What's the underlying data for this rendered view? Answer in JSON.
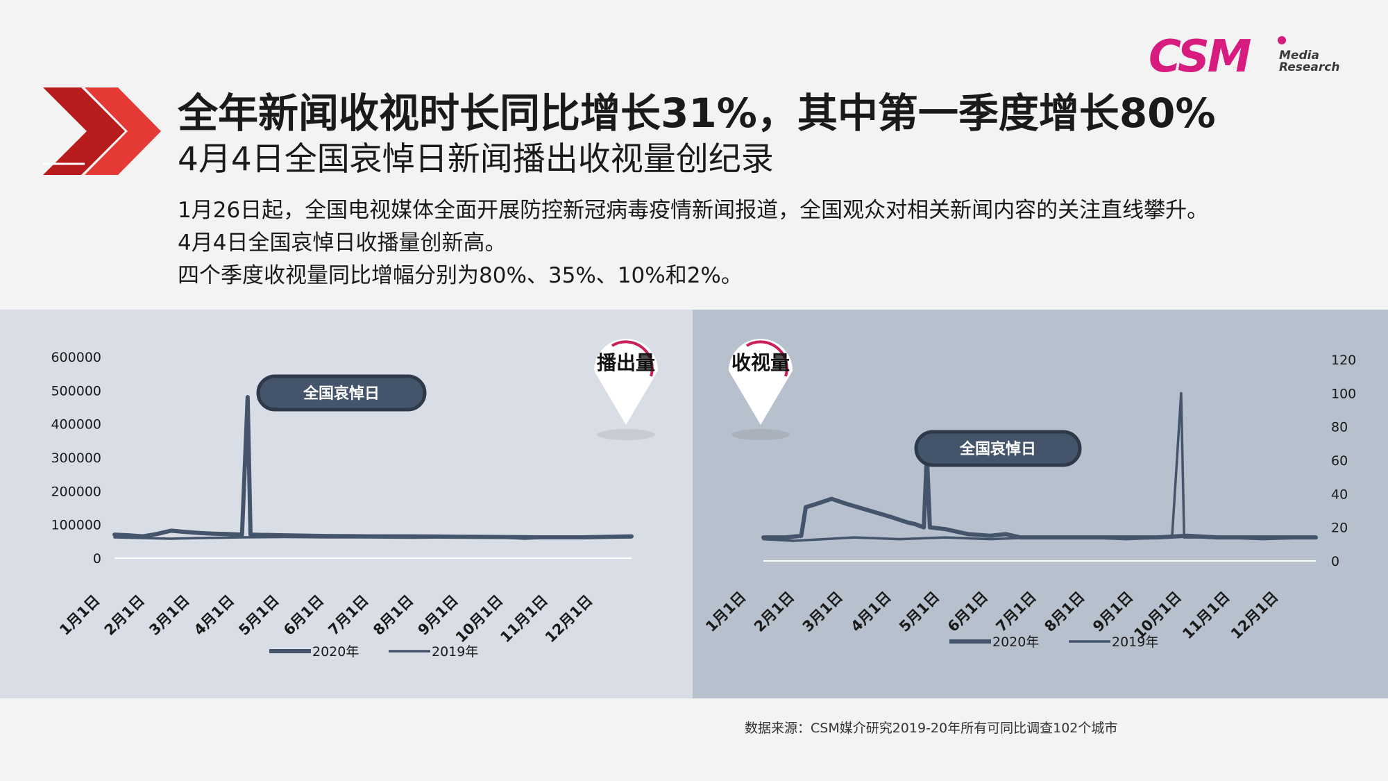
{
  "brand": {
    "logo_main": "CSM",
    "logo_sub_line1": "Media",
    "logo_sub_line2": "Research",
    "color": "#d81b7e"
  },
  "header": {
    "title": "全年新闻收视时长同比增长31%，其中第一季度增长80%",
    "subtitle": "4月4日全国哀悼日新闻播出收视量创纪录"
  },
  "body": {
    "lines": [
      "1月26日起，全国电视媒体全面开展防控新冠病毒疫情新闻报道，全国观众对相关新闻内容的关注直线攀升。",
      "4月4日全国哀悼日收播量创新高。",
      "四个季度收视量同比增幅分别为80%、35%、10%和2%。"
    ]
  },
  "source": "数据来源：CSM媒介研究2019-20年所有可同比调查102个城市",
  "colors": {
    "series_2020": "#44546a",
    "series_2019": "#44546a",
    "badge_bg": "#44546a",
    "marker_accent": "#c8205a",
    "panel_left": "#d8dde6",
    "panel_right": "#b7c0cd"
  },
  "chart_data": [
    {
      "type": "line",
      "title": "播出量",
      "annotation": "全国哀悼日",
      "categories": [
        "1月1日",
        "2月1日",
        "3月1日",
        "4月1日",
        "5月1日",
        "6月1日",
        "7月1日",
        "8月1日",
        "9月1日",
        "10月1日",
        "11月1日",
        "12月1日"
      ],
      "y_axis": {
        "side": "left",
        "ticks": [
          "600000",
          "500000",
          "400000",
          "300000",
          "200000",
          "100000",
          "0"
        ],
        "min": 0,
        "max": 600000
      },
      "series": [
        {
          "name": "2020年",
          "approx_points": [
            [
              0,
              70000
            ],
            [
              10,
              68000
            ],
            [
              20,
              65000
            ],
            [
              30,
              72000
            ],
            [
              40,
              82000
            ],
            [
              50,
              78000
            ],
            [
              60,
              75000
            ],
            [
              70,
              73000
            ],
            [
              80,
              72000
            ],
            [
              90,
              70000
            ],
            [
              94,
              480000
            ],
            [
              96,
              70000
            ],
            [
              120,
              68000
            ],
            [
              150,
              66000
            ],
            [
              180,
              65000
            ],
            [
              210,
              65000
            ],
            [
              240,
              64000
            ],
            [
              270,
              63000
            ],
            [
              300,
              62000
            ],
            [
              330,
              62000
            ],
            [
              365,
              65000
            ]
          ]
        },
        {
          "name": "2019年",
          "approx_points": [
            [
              0,
              62000
            ],
            [
              20,
              60000
            ],
            [
              40,
              58000
            ],
            [
              60,
              60000
            ],
            [
              90,
              62000
            ],
            [
              120,
              63000
            ],
            [
              150,
              62000
            ],
            [
              180,
              62000
            ],
            [
              210,
              61000
            ],
            [
              240,
              62000
            ],
            [
              270,
              62000
            ],
            [
              290,
              58000
            ],
            [
              300,
              60000
            ],
            [
              330,
              61000
            ],
            [
              365,
              62000
            ]
          ]
        }
      ],
      "legend": [
        "2020年",
        "2019年"
      ],
      "legend_position": "bottom"
    },
    {
      "type": "line",
      "title": "收视量",
      "annotation": "全国哀悼日",
      "categories": [
        "1月1日",
        "2月1日",
        "3月1日",
        "4月1日",
        "5月1日",
        "6月1日",
        "7月1日",
        "8月1日",
        "9月1日",
        "10月1日",
        "11月1日",
        "12月1日"
      ],
      "y_axis": {
        "side": "right",
        "ticks": [
          "120",
          "100",
          "80",
          "60",
          "40",
          "20",
          "0"
        ],
        "min": 0,
        "max": 120
      },
      "series": [
        {
          "name": "2020年",
          "approx_points": [
            [
              0,
              14
            ],
            [
              15,
              14
            ],
            [
              25,
              15
            ],
            [
              28,
              32
            ],
            [
              35,
              34
            ],
            [
              45,
              37
            ],
            [
              55,
              34
            ],
            [
              70,
              30
            ],
            [
              85,
              26
            ],
            [
              95,
              23
            ],
            [
              100,
              22
            ],
            [
              106,
              20
            ],
            [
              108,
              64
            ],
            [
              110,
              20
            ],
            [
              120,
              19
            ],
            [
              135,
              16
            ],
            [
              150,
              15
            ],
            [
              160,
              16
            ],
            [
              170,
              14
            ],
            [
              200,
              14
            ],
            [
              230,
              14
            ],
            [
              260,
              14
            ],
            [
              280,
              15
            ],
            [
              300,
              14
            ],
            [
              330,
              14
            ],
            [
              365,
              14
            ]
          ]
        },
        {
          "name": "2019年",
          "approx_points": [
            [
              0,
              13
            ],
            [
              20,
              12
            ],
            [
              40,
              13
            ],
            [
              60,
              14
            ],
            [
              90,
              13
            ],
            [
              120,
              14
            ],
            [
              150,
              13
            ],
            [
              180,
              14
            ],
            [
              210,
              14
            ],
            [
              240,
              13
            ],
            [
              270,
              14
            ],
            [
              276,
              100
            ],
            [
              278,
              14
            ],
            [
              300,
              14
            ],
            [
              330,
              13
            ],
            [
              365,
              14
            ]
          ]
        }
      ],
      "legend": [
        "2020年",
        "2019年"
      ],
      "legend_position": "bottom"
    }
  ]
}
